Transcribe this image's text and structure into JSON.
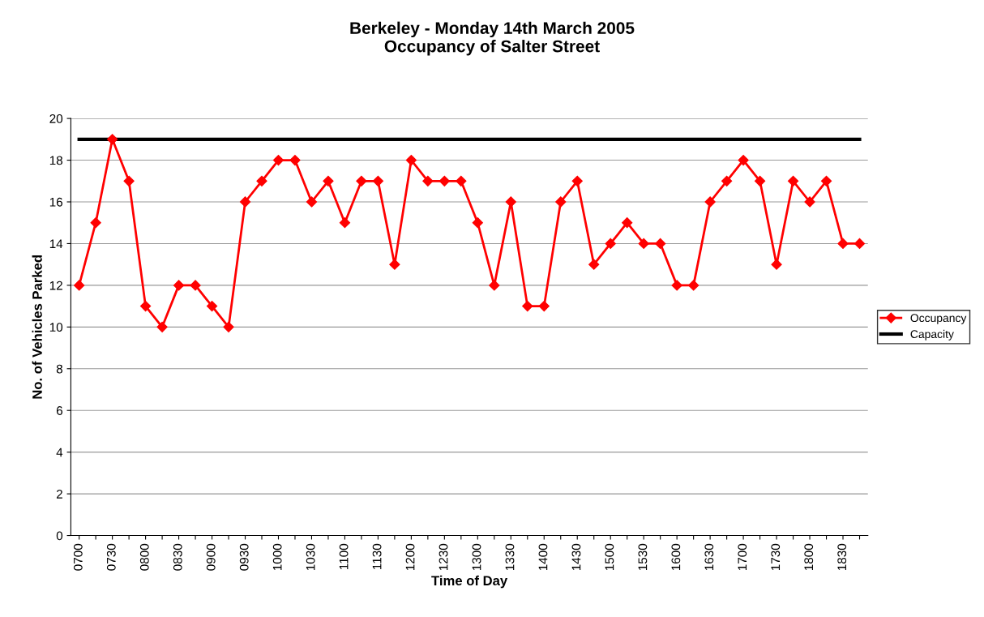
{
  "chart_data": {
    "type": "line",
    "title": "Berkeley - Monday 14th March 2005\nOccupancy of Salter Street",
    "xlabel": "Time of Day",
    "ylabel": "No. of Vehicles Parked",
    "categories": [
      "0700",
      null,
      "0730",
      null,
      "0800",
      null,
      "0830",
      null,
      "0900",
      null,
      "0930",
      null,
      "1000",
      null,
      "1030",
      null,
      "1100",
      null,
      "1130",
      null,
      "1200",
      null,
      "1230",
      null,
      "1300",
      null,
      "1330",
      null,
      "1400",
      null,
      "1430",
      null,
      "1500",
      null,
      "1530",
      null,
      "1600",
      null,
      "1630",
      null,
      "1700",
      null,
      "1730",
      null,
      "1800",
      null,
      "1830",
      null
    ],
    "series": [
      {
        "name": "Occupancy",
        "color": "#ff0000",
        "marker": "diamond",
        "values": [
          12,
          15,
          19,
          17,
          11,
          10,
          12,
          12,
          11,
          10,
          16,
          17,
          18,
          18,
          16,
          17,
          15,
          17,
          17,
          13,
          18,
          17,
          17,
          17,
          15,
          12,
          16,
          11,
          11,
          16,
          17,
          13,
          14,
          15,
          14,
          14,
          12,
          12,
          16,
          17,
          18,
          17,
          13,
          17,
          16,
          17,
          14,
          14
        ]
      },
      {
        "name": "Capacity",
        "color": "#000000",
        "marker": "none",
        "values": [
          19,
          19,
          19,
          19,
          19,
          19,
          19,
          19,
          19,
          19,
          19,
          19,
          19,
          19,
          19,
          19,
          19,
          19,
          19,
          19,
          19,
          19,
          19,
          19,
          19,
          19,
          19,
          19,
          19,
          19,
          19,
          19,
          19,
          19,
          19,
          19,
          19,
          19,
          19,
          19,
          19,
          19,
          19,
          19,
          19,
          19,
          19,
          19
        ]
      }
    ],
    "ylim": [
      0,
      20
    ],
    "yticks": [
      0,
      2,
      4,
      6,
      8,
      10,
      12,
      14,
      16,
      18,
      20
    ],
    "grid": "y",
    "legend": "right"
  }
}
